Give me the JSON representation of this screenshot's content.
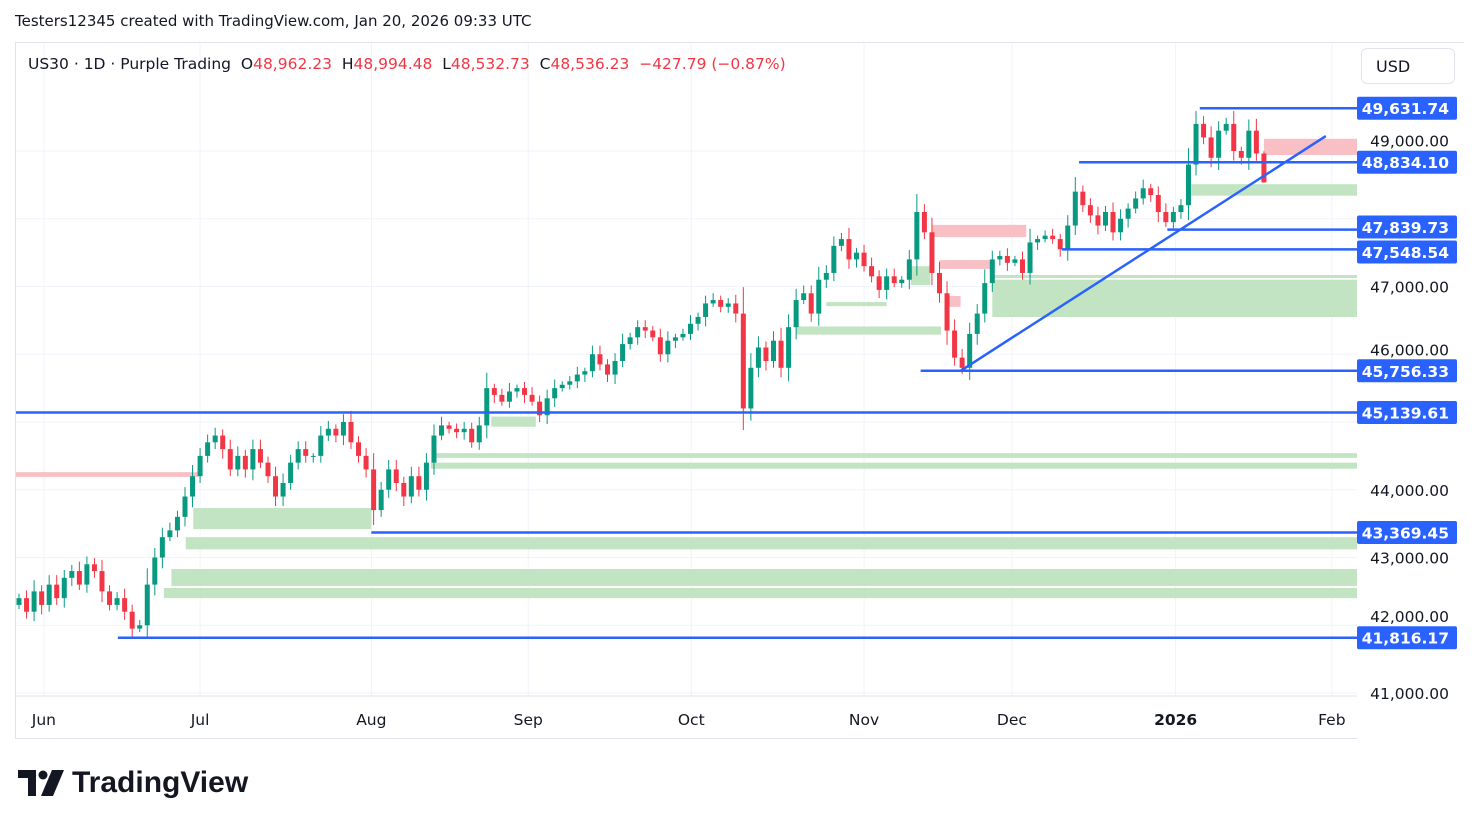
{
  "credit": "Testers12345 created with TradingView.com, Jan 20, 2026 09:33 UTC",
  "legend": {
    "symbol": "US30 · 1D · Purple Trading",
    "o_label": "O",
    "o": "48,962.23",
    "h_label": "H",
    "h": "48,994.48",
    "l_label": "L",
    "l": "48,532.73",
    "c_label": "C",
    "c": "48,536.23",
    "change": "−427.79 (−0.87%)"
  },
  "currency_button": "USD",
  "logo_text": "TradingView",
  "colors": {
    "up": "#089981",
    "down": "#f23645",
    "line": "#2962ff",
    "zone_green": "#bfe3c0",
    "zone_red": "#f8bcc2"
  },
  "chart_data": {
    "type": "candlestick",
    "symbol": "US30",
    "interval": "1D",
    "ylim": [
      41000,
      50000
    ],
    "price_ticks": [
      "41,000.00",
      "42,000.00",
      "43,000.00",
      "44,000.00",
      "46,000.00",
      "47,000.00",
      "49,000.00"
    ],
    "price_tick_values": [
      41000,
      42000,
      43000,
      44000,
      46000,
      47000,
      49000
    ],
    "time_labels": [
      {
        "label": "Jun",
        "index": 3.3
      },
      {
        "label": "Jul",
        "index": 24
      },
      {
        "label": "Aug",
        "index": 46.7
      },
      {
        "label": "Sep",
        "index": 67.5
      },
      {
        "label": "Oct",
        "index": 89.1
      },
      {
        "label": "Nov",
        "index": 112
      },
      {
        "label": "Dec",
        "index": 131.6
      },
      {
        "label": "2026",
        "index": 153.3,
        "bold": true
      },
      {
        "label": "Feb",
        "index": 174
      }
    ],
    "x_range_index": [
      -0.4,
      177.6
    ],
    "closes": [
      42400,
      42200,
      42500,
      42300,
      42600,
      42400,
      42700,
      42800,
      42600,
      42900,
      42800,
      42500,
      42300,
      42400,
      42200,
      41950,
      42000,
      42600,
      43000,
      43300,
      43400,
      43600,
      43900,
      44200,
      44500,
      44700,
      44800,
      44600,
      44300,
      44500,
      44300,
      44600,
      44400,
      44200,
      43900,
      44100,
      44400,
      44600,
      44500,
      44500,
      44800,
      44900,
      44800,
      45000,
      44700,
      44500,
      44300,
      43700,
      44000,
      44300,
      44100,
      43900,
      44200,
      44000,
      44400,
      44800,
      44950,
      44900,
      44850,
      44900,
      44700,
      44950,
      45500,
      45400,
      45300,
      45450,
      45500,
      45400,
      45300,
      45100,
      45350,
      45500,
      45550,
      45600,
      45700,
      45750,
      46000,
      45850,
      45700,
      45900,
      46150,
      46250,
      46400,
      46350,
      46250,
      46000,
      46200,
      46250,
      46300,
      46450,
      46550,
      46750,
      46800,
      46700,
      46750,
      46600,
      45200,
      45800,
      46100,
      45900,
      46200,
      45800,
      46400,
      46800,
      46900,
      46600,
      47100,
      47200,
      47600,
      47700,
      47400,
      47500,
      47300,
      47150,
      46950,
      47150,
      47050,
      47100,
      47400,
      48100,
      47800,
      47200,
      46900,
      46350,
      45950,
      45800,
      46300,
      46600,
      47050,
      47400,
      47450,
      47350,
      47400,
      47200,
      47650,
      47700,
      47750,
      47700,
      47550,
      47900,
      48400,
      48200,
      48050,
      47900,
      48100,
      47800,
      48000,
      48150,
      48300,
      48450,
      48350,
      48100,
      47950,
      48100,
      48200,
      48800,
      49400,
      49200,
      48900,
      49300,
      49400,
      49000,
      48900,
      49300,
      48964,
      48536.23
    ],
    "first_open": 42300,
    "last_candle": {
      "open": 48962.23,
      "high": 48994.48,
      "low": 48532.73,
      "close": 48536.23
    },
    "horizontal_levels": [
      {
        "price": 49631.74,
        "label": "49,631.74",
        "from_index": 156.5
      },
      {
        "price": 48834.1,
        "label": "48,834.10",
        "from_index": 140.5
      },
      {
        "price": 47839.73,
        "label": "47,839.73",
        "from_index": 152.2
      },
      {
        "price": 47548.54,
        "label": "47,548.54",
        "from_index": 138.2
      },
      {
        "price": 45756.33,
        "label": "45,756.33",
        "from_index": 119.5
      },
      {
        "price": 45139.61,
        "label": "45,139.61",
        "from_index": -0.4
      },
      {
        "price": 43369.45,
        "label": "43,369.45",
        "from_index": 46.7
      },
      {
        "price": 41816.17,
        "label": "41,816.17",
        "from_index": 13.1
      }
    ],
    "trendline": {
      "from": {
        "index": 124.8,
        "price": 45756
      },
      "to": {
        "index": 173.2,
        "price": 49220
      }
    },
    "zones": [
      {
        "type": "supply",
        "from_index": 165,
        "to_index": null,
        "low": 48940,
        "high": 49180
      },
      {
        "type": "demand",
        "from_index": 155.3,
        "to_index": null,
        "low": 48340,
        "high": 48510
      },
      {
        "type": "supply",
        "from_index": 121,
        "to_index": 133.5,
        "low": 47730,
        "high": 47910
      },
      {
        "type": "supply",
        "from_index": 122,
        "to_index": 129,
        "low": 47260,
        "high": 47390
      },
      {
        "type": "demand",
        "from_index": 118.2,
        "to_index": 120.8,
        "low": 47020,
        "high": 47300
      },
      {
        "type": "demand",
        "from_index": 129,
        "to_index": null,
        "low": 47130,
        "high": 47170
      },
      {
        "type": "demand",
        "from_index": 129,
        "to_index": null,
        "low": 46550,
        "high": 47100
      },
      {
        "type": "supply",
        "from_index": 122.8,
        "to_index": 124.8,
        "low": 46700,
        "high": 46860
      },
      {
        "type": "demand",
        "from_index": 107,
        "to_index": 115,
        "low": 46710,
        "high": 46770
      },
      {
        "type": "demand",
        "from_index": 103,
        "to_index": 122.2,
        "low": 46290,
        "high": 46410
      },
      {
        "type": "demand",
        "from_index": 62.6,
        "to_index": 68.5,
        "low": 44930,
        "high": 45080
      },
      {
        "type": "demand",
        "from_index": 55.3,
        "to_index": null,
        "low": 44470,
        "high": 44540
      },
      {
        "type": "demand",
        "from_index": 54.6,
        "to_index": null,
        "low": 44310,
        "high": 44400
      },
      {
        "type": "supply",
        "from_index": -0.4,
        "to_index": 23.8,
        "low": 44190,
        "high": 44260
      },
      {
        "type": "demand",
        "from_index": 23.1,
        "to_index": 46.7,
        "low": 43420,
        "high": 43730
      },
      {
        "type": "demand",
        "from_index": 22.1,
        "to_index": null,
        "low": 43120,
        "high": 43300
      },
      {
        "type": "demand",
        "from_index": 20.2,
        "to_index": null,
        "low": 42580,
        "high": 42830
      },
      {
        "type": "demand",
        "from_index": 19.2,
        "to_index": null,
        "low": 42400,
        "high": 42550
      }
    ]
  }
}
